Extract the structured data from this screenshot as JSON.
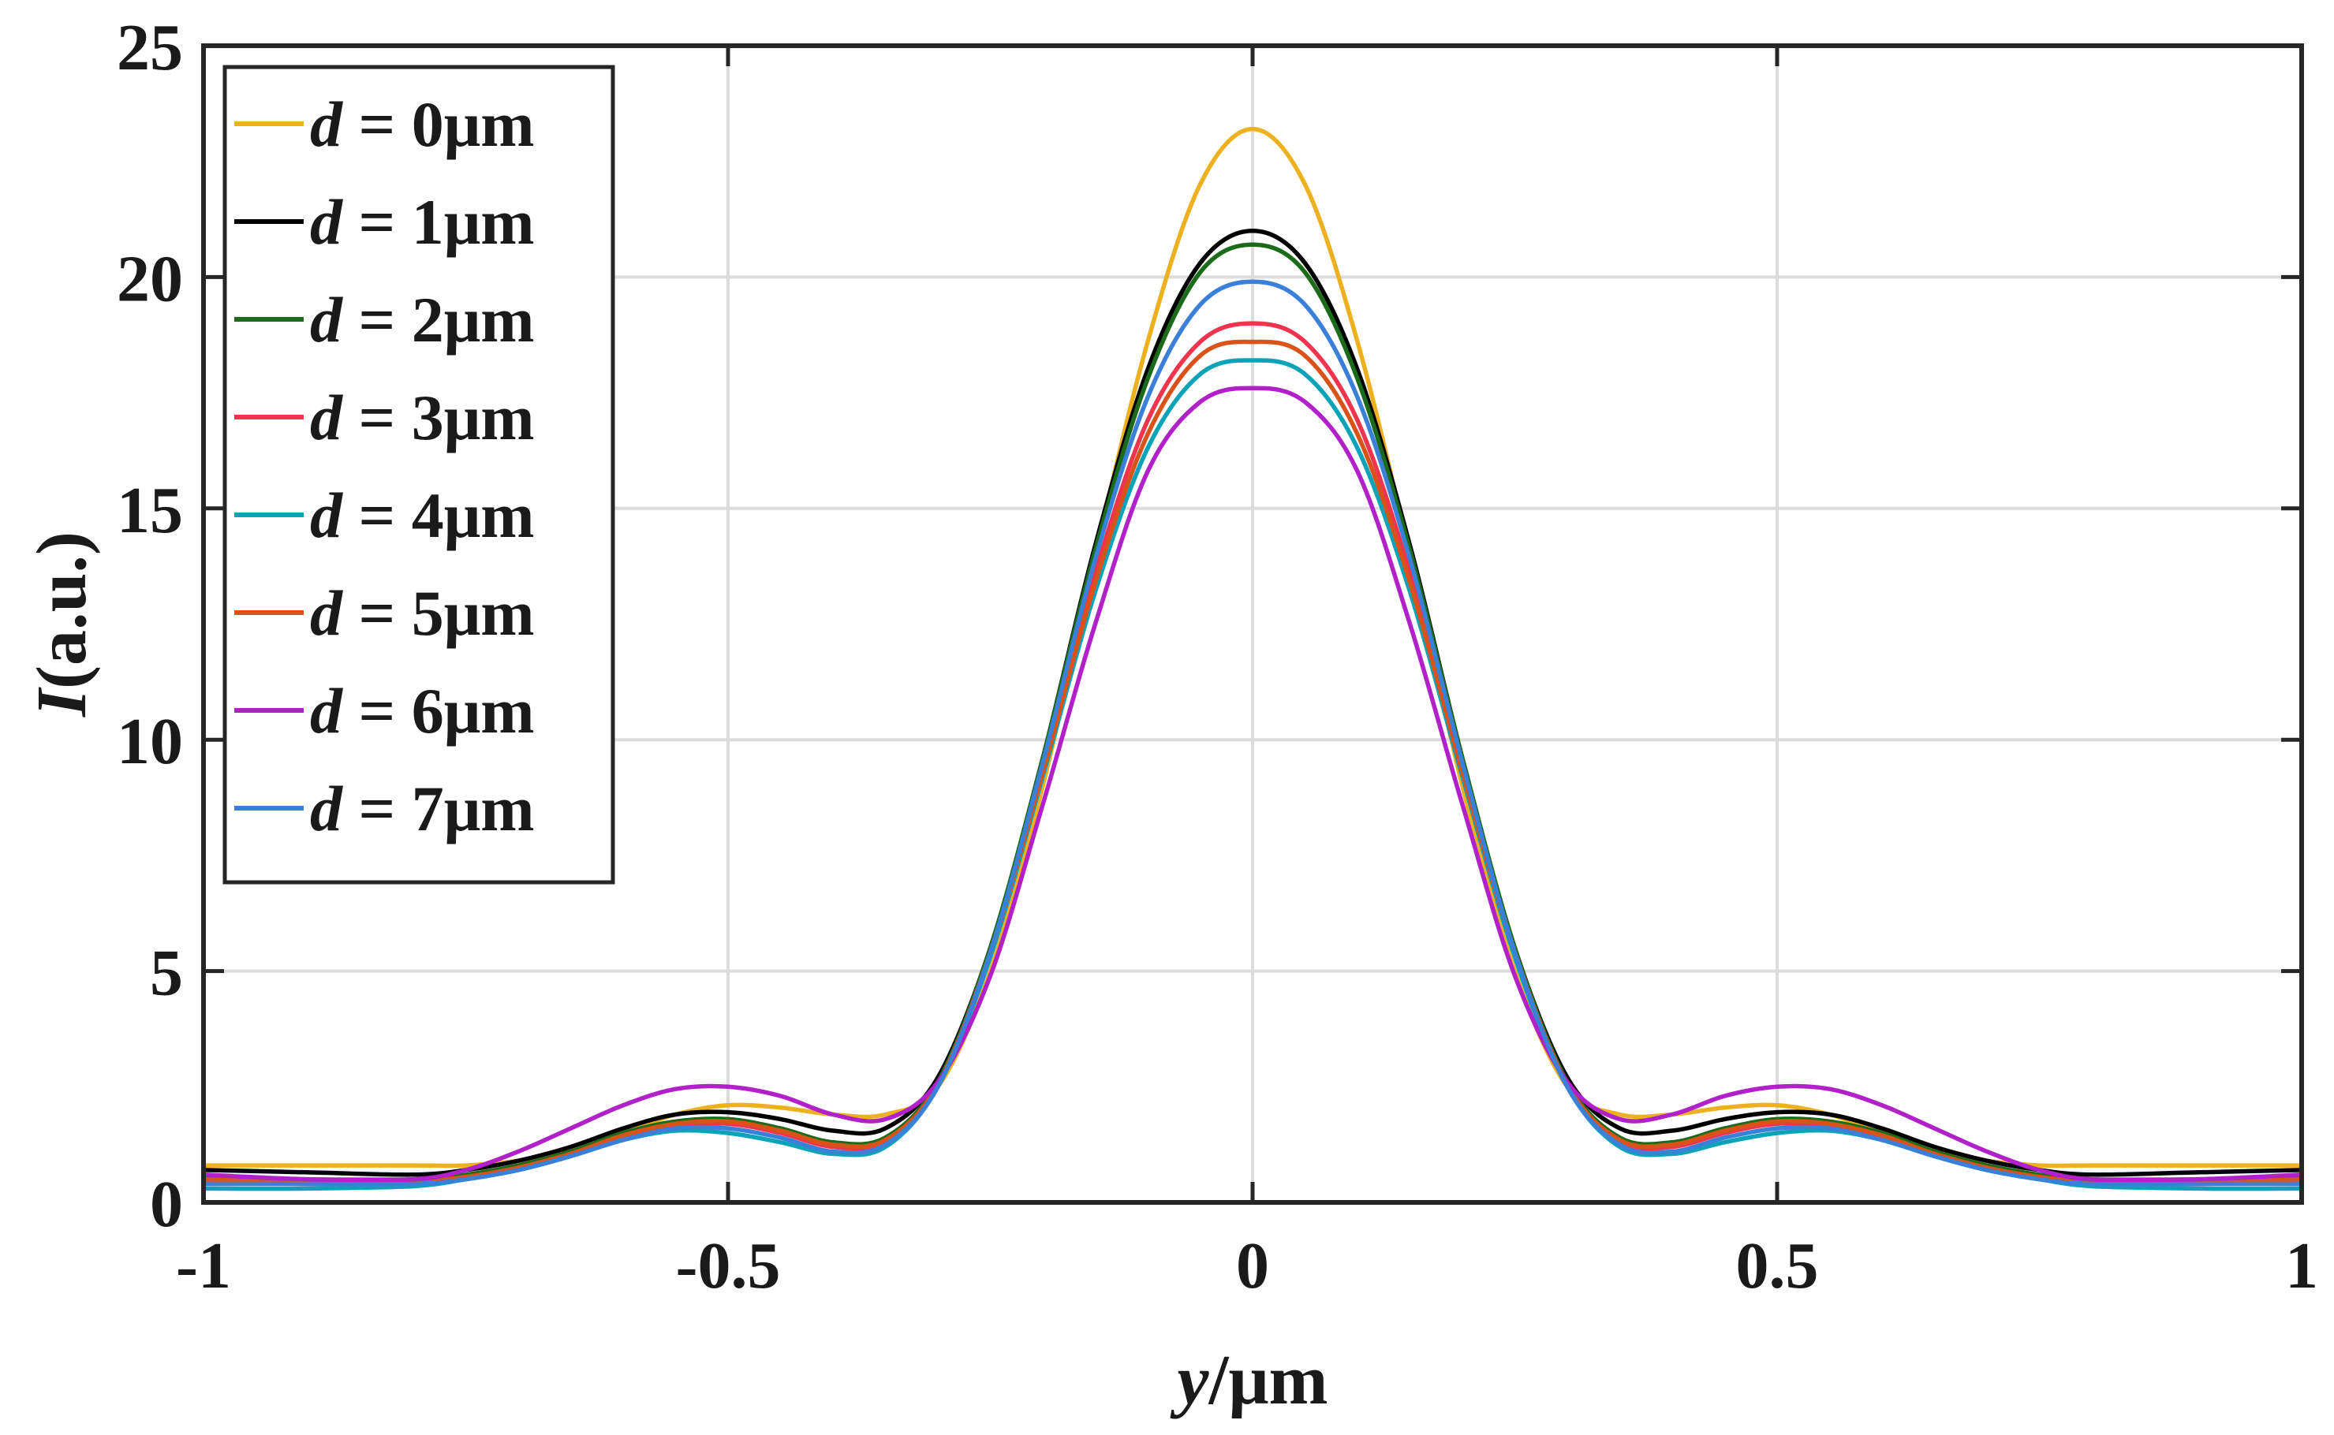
{
  "chart_data": {
    "type": "line",
    "xlabel_var": "y",
    "xlabel_unit": "/μm",
    "ylabel_var": "I",
    "ylabel_unit": "(a.u.)",
    "xlim": [
      -1,
      1
    ],
    "ylim": [
      0,
      25
    ],
    "xticks": [
      -1,
      -0.5,
      0,
      0.5,
      1
    ],
    "xtick_labels": [
      "-1",
      "-0.5",
      "0",
      "0.5",
      "1"
    ],
    "yticks": [
      0,
      5,
      10,
      15,
      20,
      25
    ],
    "ytick_labels": [
      "0",
      "5",
      "10",
      "15",
      "20",
      "25"
    ],
    "grid": true,
    "legend_position": "top-left",
    "x": [
      -1.0,
      -0.9,
      -0.8,
      -0.75,
      -0.7,
      -0.65,
      -0.6,
      -0.55,
      -0.5,
      -0.45,
      -0.4,
      -0.35,
      -0.3,
      -0.25,
      -0.2,
      -0.15,
      -0.1,
      -0.05,
      0.0,
      0.05,
      0.1,
      0.15,
      0.2,
      0.25,
      0.3,
      0.35,
      0.4,
      0.45,
      0.5,
      0.55,
      0.6,
      0.65,
      0.7,
      0.75,
      0.8,
      0.9,
      1.0
    ],
    "series": [
      {
        "name": "d = 0μm",
        "var": "d",
        "label_rest": " = 0μm",
        "color": "#EDB120",
        "values": [
          0.8,
          0.8,
          0.8,
          0.8,
          0.9,
          1.1,
          1.5,
          1.9,
          2.1,
          2.05,
          1.9,
          1.9,
          2.5,
          5.0,
          9.0,
          14.0,
          18.6,
          22.0,
          23.2,
          22.0,
          18.6,
          14.0,
          9.0,
          5.0,
          2.5,
          1.9,
          1.9,
          2.05,
          2.1,
          1.9,
          1.5,
          1.1,
          0.9,
          0.8,
          0.8,
          0.8,
          0.8
        ]
      },
      {
        "name": "d = 1μm",
        "var": "d",
        "label_rest": " = 1μm",
        "color": "#000000",
        "values": [
          0.7,
          0.65,
          0.6,
          0.7,
          0.9,
          1.2,
          1.6,
          1.9,
          1.95,
          1.8,
          1.55,
          1.6,
          2.7,
          5.5,
          9.6,
          14.2,
          18.0,
          20.3,
          21.0,
          20.3,
          18.0,
          14.2,
          9.6,
          5.5,
          2.7,
          1.6,
          1.55,
          1.8,
          1.95,
          1.9,
          1.6,
          1.2,
          0.9,
          0.7,
          0.6,
          0.65,
          0.7
        ]
      },
      {
        "name": "d = 2μm",
        "var": "d",
        "label_rest": " = 2μm",
        "color": "#1B6B1B",
        "values": [
          0.55,
          0.5,
          0.5,
          0.6,
          0.8,
          1.1,
          1.5,
          1.75,
          1.8,
          1.6,
          1.3,
          1.4,
          2.6,
          5.5,
          9.6,
          14.1,
          17.8,
          20.1,
          20.7,
          20.1,
          17.8,
          14.1,
          9.6,
          5.5,
          2.6,
          1.4,
          1.3,
          1.6,
          1.8,
          1.75,
          1.5,
          1.1,
          0.8,
          0.6,
          0.5,
          0.5,
          0.55
        ]
      },
      {
        "name": "d = 3μm",
        "var": "d",
        "label_rest": " = 3μm",
        "color": "#F0344E",
        "values": [
          0.45,
          0.4,
          0.45,
          0.55,
          0.75,
          1.05,
          1.4,
          1.65,
          1.7,
          1.5,
          1.2,
          1.3,
          2.5,
          5.4,
          9.4,
          13.6,
          16.9,
          18.6,
          19.0,
          18.6,
          16.9,
          13.6,
          9.4,
          5.4,
          2.5,
          1.3,
          1.2,
          1.5,
          1.7,
          1.65,
          1.4,
          1.05,
          0.75,
          0.55,
          0.45,
          0.4,
          0.45
        ]
      },
      {
        "name": "d = 4μm",
        "var": "d",
        "label_rest": " = 4μm",
        "color": "#0CA3B8",
        "values": [
          0.3,
          0.3,
          0.35,
          0.5,
          0.7,
          1.0,
          1.35,
          1.55,
          1.5,
          1.3,
          1.05,
          1.2,
          2.5,
          5.3,
          9.2,
          13.2,
          16.3,
          17.9,
          18.2,
          17.9,
          16.3,
          13.2,
          9.2,
          5.3,
          2.5,
          1.2,
          1.05,
          1.3,
          1.5,
          1.55,
          1.35,
          1.0,
          0.7,
          0.5,
          0.35,
          0.3,
          0.3
        ]
      },
      {
        "name": "d = 5μm",
        "var": "d",
        "label_rest": " = 5μm",
        "color": "#D95319",
        "values": [
          0.5,
          0.45,
          0.45,
          0.55,
          0.75,
          1.05,
          1.45,
          1.7,
          1.75,
          1.55,
          1.25,
          1.35,
          2.55,
          5.4,
          9.3,
          13.4,
          16.6,
          18.3,
          18.6,
          18.3,
          16.6,
          13.4,
          9.3,
          5.4,
          2.55,
          1.35,
          1.25,
          1.55,
          1.75,
          1.7,
          1.45,
          1.05,
          0.75,
          0.55,
          0.45,
          0.45,
          0.5
        ]
      },
      {
        "name": "d = 6μm",
        "var": "d",
        "label_rest": " = 6μm",
        "color": "#B120C8",
        "values": [
          0.6,
          0.5,
          0.5,
          0.7,
          1.1,
          1.6,
          2.1,
          2.45,
          2.5,
          2.3,
          1.9,
          1.8,
          2.6,
          4.9,
          8.6,
          12.5,
          15.8,
          17.3,
          17.6,
          17.3,
          15.8,
          12.5,
          8.6,
          4.9,
          2.6,
          1.8,
          1.9,
          2.3,
          2.5,
          2.45,
          2.1,
          1.6,
          1.1,
          0.7,
          0.5,
          0.5,
          0.6
        ]
      },
      {
        "name": "d = 7μm",
        "var": "d",
        "label_rest": " = 7μm",
        "color": "#3A80D8",
        "values": [
          0.4,
          0.4,
          0.4,
          0.5,
          0.7,
          1.0,
          1.35,
          1.6,
          1.6,
          1.4,
          1.1,
          1.25,
          2.5,
          5.4,
          9.5,
          13.9,
          17.4,
          19.4,
          19.9,
          19.4,
          17.4,
          13.9,
          9.5,
          5.4,
          2.5,
          1.25,
          1.1,
          1.4,
          1.6,
          1.6,
          1.35,
          1.0,
          0.7,
          0.5,
          0.4,
          0.4,
          0.4
        ]
      }
    ]
  }
}
